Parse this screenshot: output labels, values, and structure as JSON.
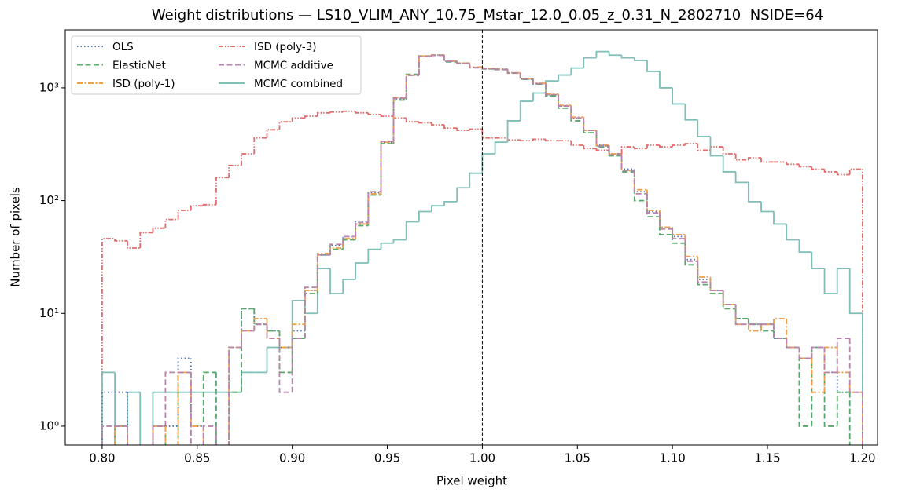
{
  "chart_data": {
    "type": "histogram",
    "title": "Weight distributions — LS10_VLIM_ANY_10.75_Mstar_12.0_0.05_z_0.31_N_2802710  NSIDE=64",
    "x_label": "Pixel weight",
    "y_label": "Number of pixels",
    "bins": [
      0.8,
      0.8067,
      0.8133,
      0.82,
      0.8267,
      0.8333,
      0.84,
      0.8467,
      0.8533,
      0.86,
      0.8667,
      0.8733,
      0.88,
      0.8867,
      0.8933,
      0.9,
      0.9067,
      0.9133,
      0.92,
      0.9267,
      0.9333,
      0.94,
      0.9467,
      0.9533,
      0.96,
      0.9667,
      0.9733,
      0.98,
      0.9867,
      0.9933,
      1.0,
      1.0067,
      1.0133,
      1.02,
      1.0267,
      1.0333,
      1.04,
      1.0467,
      1.0533,
      1.06,
      1.0667,
      1.0733,
      1.08,
      1.0867,
      1.0933,
      1.1,
      1.1067,
      1.1133,
      1.12,
      1.1267,
      1.1333,
      1.14,
      1.1467,
      1.1533,
      1.16,
      1.1667,
      1.1733,
      1.18,
      1.1867,
      1.1933,
      1.2
    ],
    "series": [
      {
        "name": "OLS",
        "color": "#4c72b0",
        "linestyle": "dotted",
        "values": [
          2,
          2,
          0,
          0,
          1,
          1,
          4,
          1,
          0,
          0,
          5,
          11,
          8,
          7,
          5,
          7,
          16,
          33,
          40,
          48,
          65,
          118,
          330,
          800,
          1300,
          1900,
          1950,
          1720,
          1650,
          1520,
          1480,
          1460,
          1360,
          1200,
          1090,
          870,
          690,
          540,
          420,
          310,
          260,
          190,
          120,
          80,
          58,
          48,
          30,
          20,
          16,
          12,
          9,
          8,
          8,
          6,
          5,
          4,
          5,
          3,
          2,
          2
        ]
      },
      {
        "name": "ElasticNet",
        "color": "#55a868",
        "linestyle": "dashed",
        "values": [
          0,
          1,
          0,
          0,
          1,
          0,
          3,
          0,
          3,
          0,
          2,
          11,
          8,
          7,
          3,
          6,
          15,
          33,
          37,
          45,
          60,
          112,
          320,
          780,
          1320,
          1920,
          1950,
          1700,
          1650,
          1510,
          1470,
          1450,
          1350,
          1190,
          1080,
          850,
          660,
          510,
          400,
          300,
          250,
          180,
          100,
          72,
          50,
          42,
          27,
          18,
          15,
          11,
          9,
          8,
          7,
          6,
          5,
          1,
          5,
          1,
          2,
          0
        ]
      },
      {
        "name": "ISD (poly-1)",
        "color": "#f0a04b",
        "linestyle": "dashdot",
        "values": [
          0,
          1,
          0,
          0,
          1,
          0,
          3,
          1,
          0,
          0,
          5,
          7,
          9,
          6,
          5,
          8,
          16,
          34,
          38,
          46,
          62,
          115,
          330,
          820,
          1300,
          1920,
          1960,
          1730,
          1660,
          1530,
          1490,
          1470,
          1360,
          1210,
          1100,
          880,
          700,
          550,
          420,
          310,
          260,
          185,
          125,
          82,
          58,
          50,
          32,
          21,
          16,
          12,
          8,
          7,
          8,
          9,
          5,
          4,
          2,
          5,
          3,
          2
        ]
      },
      {
        "name": "ISD (poly-3)",
        "color": "#e06c6c",
        "linestyle": "dashdotdot",
        "values": [
          46,
          44,
          38,
          52,
          57,
          68,
          82,
          90,
          92,
          160,
          205,
          260,
          360,
          425,
          500,
          540,
          560,
          600,
          610,
          620,
          600,
          580,
          560,
          540,
          500,
          490,
          470,
          440,
          420,
          430,
          360,
          360,
          345,
          340,
          350,
          340,
          340,
          310,
          290,
          280,
          260,
          300,
          290,
          310,
          300,
          310,
          320,
          280,
          300,
          260,
          230,
          240,
          220,
          220,
          210,
          200,
          190,
          180,
          170,
          190
        ]
      },
      {
        "name": "MCMC additive",
        "color": "#b883ac",
        "linestyle": "dashed",
        "values": [
          1,
          1,
          0,
          0,
          1,
          3,
          3,
          0,
          1,
          0,
          5,
          7,
          8,
          6,
          2,
          6,
          17,
          33,
          41,
          48,
          64,
          120,
          335,
          810,
          1290,
          1900,
          1940,
          1720,
          1650,
          1510,
          1480,
          1460,
          1360,
          1200,
          1090,
          870,
          690,
          540,
          420,
          305,
          255,
          185,
          115,
          78,
          56,
          46,
          29,
          19,
          16,
          12,
          8,
          8,
          8,
          6,
          5,
          4,
          5,
          3,
          6,
          2
        ]
      },
      {
        "name": "MCMC combined",
        "color": "#7fbfb8",
        "linestyle": "solid",
        "values": [
          3,
          0,
          2,
          0,
          2,
          2,
          2,
          2,
          2,
          2,
          2,
          3,
          3,
          5,
          5,
          13,
          10,
          25,
          15,
          20,
          28,
          37,
          42,
          45,
          65,
          80,
          90,
          98,
          130,
          175,
          260,
          330,
          510,
          760,
          900,
          1150,
          1300,
          1500,
          1850,
          2100,
          1950,
          1850,
          1750,
          1400,
          1000,
          720,
          520,
          370,
          250,
          180,
          145,
          98,
          80,
          62,
          45,
          35,
          25,
          15,
          25,
          10
        ]
      }
    ],
    "xlim": [
      0.7806,
      1.2079
    ],
    "xticks": [
      {
        "value": 0.8,
        "label": "0.80"
      },
      0.85,
      {
        "value": 0.9,
        "label": "0.90"
      },
      0.95,
      {
        "value": 1.0,
        "label": "1.00"
      },
      1.05,
      {
        "value": 1.1,
        "label": "1.10"
      },
      1.15,
      {
        "value": 1.2,
        "label": "1.20"
      }
    ],
    "ylim": [
      0.68,
      3270
    ],
    "log_y": true,
    "yticks": [
      {
        "value": 1,
        "label": "10⁰"
      },
      {
        "value": 10,
        "label": "10¹"
      },
      {
        "value": 100,
        "label": "10²"
      },
      {
        "value": 1000,
        "label": "10³"
      }
    ],
    "vline": 1.0,
    "legend": "upper left"
  }
}
